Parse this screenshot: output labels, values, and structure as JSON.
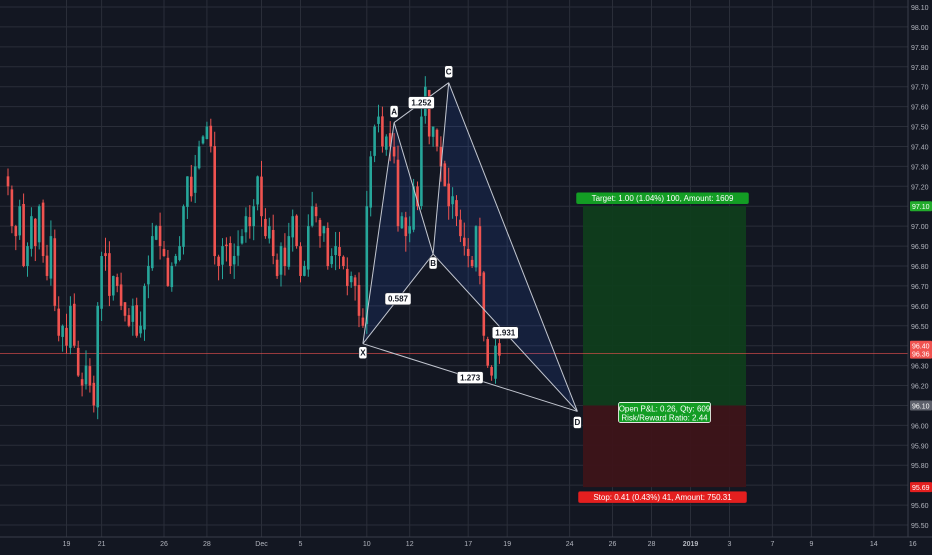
{
  "chart_data": {
    "type": "candlestick",
    "y_axis": {
      "range": [
        95.5,
        98.1
      ],
      "ticks": [
        "98.10",
        "98.00",
        "97.90",
        "97.80",
        "97.70",
        "97.60",
        "97.50",
        "97.40",
        "97.30",
        "97.20",
        "97.10",
        "97.00",
        "96.90",
        "96.80",
        "96.70",
        "96.60",
        "96.50",
        "96.40",
        "96.30",
        "96.20",
        "96.10",
        "96.00",
        "95.90",
        "95.80",
        "95.70",
        "95.60",
        "95.50"
      ]
    },
    "x_axis": {
      "labels": [
        {
          "label": "19",
          "bar": 15
        },
        {
          "label": "21",
          "bar": 24
        },
        {
          "label": "26",
          "bar": 40
        },
        {
          "label": "28",
          "bar": 51
        },
        {
          "label": "Dec",
          "bar": 65
        },
        {
          "label": "5",
          "bar": 75
        },
        {
          "label": "10",
          "bar": 92
        },
        {
          "label": "12",
          "bar": 103
        },
        {
          "label": "17",
          "bar": 118
        },
        {
          "label": "19",
          "bar": 128
        },
        {
          "label": "24",
          "bar": 144
        },
        {
          "label": "26",
          "bar": 155
        },
        {
          "label": "28",
          "bar": 165
        },
        {
          "label": "2019",
          "bar": 175
        },
        {
          "label": "3",
          "bar": 185
        },
        {
          "label": "7",
          "bar": 196
        },
        {
          "label": "9",
          "bar": 206
        },
        {
          "label": "14",
          "bar": 222
        },
        {
          "label": "16",
          "bar": 232
        }
      ]
    },
    "closes": [
      97.2,
      97.0,
      96.95,
      97.1,
      96.8,
      96.9,
      97.05,
      96.9,
      97.1,
      96.85,
      96.75,
      96.95,
      96.6,
      96.45,
      96.5,
      96.4,
      96.6,
      96.4,
      96.25,
      96.2,
      96.3,
      96.2,
      96.1,
      96.6,
      96.85,
      96.85,
      96.65,
      96.75,
      96.7,
      96.6,
      96.55,
      96.5,
      96.6,
      96.45,
      96.5,
      96.7,
      96.8,
      96.95,
      97.0,
      96.9,
      96.85,
      96.7,
      96.8,
      96.85,
      96.9,
      97.1,
      97.25,
      97.15,
      97.3,
      97.4,
      97.45,
      97.5,
      97.4,
      96.85,
      96.8,
      96.9,
      96.9,
      96.8,
      96.85,
      96.9,
      96.95,
      97.05,
      97.0,
      97.1,
      97.25,
      97.05,
      96.95,
      97.0,
      96.85,
      96.75,
      96.9,
      96.8,
      96.95,
      97.05,
      96.9,
      96.75,
      96.8,
      97.0,
      97.1,
      97.05,
      96.95,
      97.0,
      96.8,
      96.85,
      96.9,
      96.85,
      96.8,
      96.7,
      96.75,
      96.7,
      96.55,
      96.5,
      97.1,
      97.35,
      97.5,
      97.55,
      97.4,
      97.45,
      97.4,
      97.35,
      97.0,
      97.05,
      96.95,
      97.0,
      97.2,
      97.1,
      97.55,
      97.7,
      97.45,
      97.5,
      97.4,
      97.3,
      97.2,
      97.1,
      97.15,
      97.05,
      96.95,
      96.9,
      96.85,
      96.8,
      97.0,
      96.75,
      96.45,
      96.3,
      96.25,
      96.4,
      96.35
    ],
    "volatility": 0.1,
    "pattern": {
      "points": [
        {
          "label": "X",
          "bar": 91,
          "value": 96.41
        },
        {
          "label": "A",
          "bar": 99,
          "value": 97.52
        },
        {
          "label": "B",
          "bar": 109,
          "value": 96.86
        },
        {
          "label": "C",
          "bar": 113,
          "value": 97.72
        },
        {
          "label": "D",
          "bar": 146,
          "value": 96.07
        }
      ],
      "ratios": [
        {
          "text": "1.252",
          "between": [
            "A",
            "C"
          ]
        },
        {
          "text": "0.587",
          "between": [
            "X",
            "B"
          ]
        },
        {
          "text": "1.931",
          "between": [
            "B",
            "D"
          ]
        },
        {
          "text": "1.273",
          "between": [
            "X",
            "D"
          ]
        }
      ]
    },
    "position": {
      "type": "long",
      "entry": 96.1,
      "target": 97.1,
      "stop": 95.69,
      "target_label": "Target: 1.00 (1.04%) 100, Amount: 1609",
      "stop_label": "Stop: 0.41 (0.43%) 41, Amount: 750.31",
      "pnl_label": "Open P&L: 0.26, Qty: 609",
      "rr_label": "Risk/Reward Ratio: 2.44"
    },
    "price_tags": [
      {
        "text": "97.10",
        "value": 97.1,
        "color": "#22ab2c"
      },
      {
        "text": "96.36",
        "value": 96.36,
        "color": "#f05350"
      },
      {
        "text": "96.40",
        "value": 96.4,
        "color": "#ef5350"
      },
      {
        "text": "96.10",
        "value": 96.1,
        "color": "#5d606b"
      },
      {
        "text": "95.69",
        "value": 95.69,
        "color": "#e41f1f"
      }
    ],
    "colors": {
      "background": "#131722",
      "grid": "#2a2e39",
      "up": "#26a69a",
      "down": "#ef5350",
      "pattern_line": "#c3c7d1",
      "target_zone": "#0f3d1c",
      "stop_zone": "#3d1419"
    }
  }
}
